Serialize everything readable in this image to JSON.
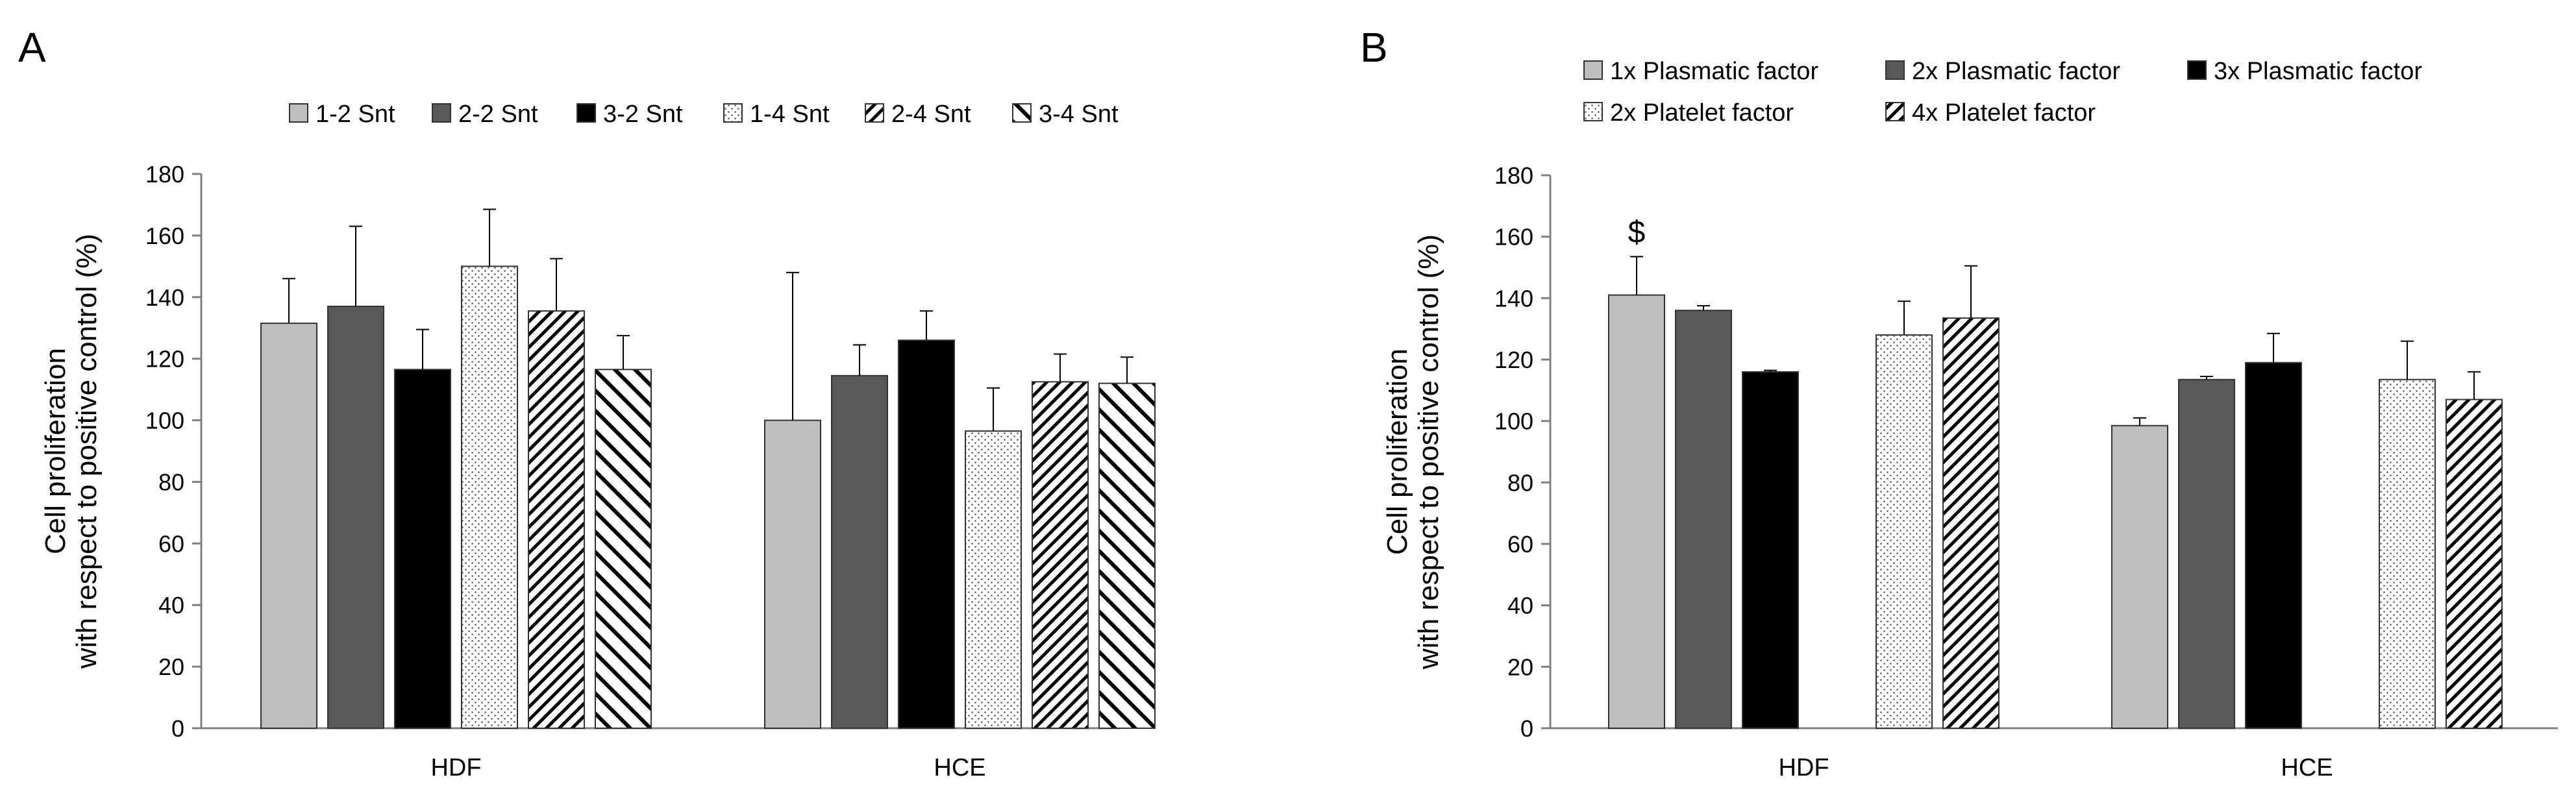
{
  "colors": {
    "grey": "#bfbfbf",
    "dark_grey": "#595959",
    "black": "#000000",
    "outline": "#333333",
    "axis": "#808080"
  },
  "chart_data": [
    {
      "panel": "A",
      "type": "bar",
      "title": "",
      "xlabel": "",
      "ylabel": [
        "Cell proliferation",
        "with respect to positive control (%)"
      ],
      "ylim": [
        0,
        180
      ],
      "yticks": [
        0,
        20,
        40,
        60,
        80,
        100,
        120,
        140,
        160,
        180
      ],
      "categories": [
        "HDF",
        "HCE"
      ],
      "legend_position": "top",
      "series": [
        {
          "name": "1-2 Snt",
          "pattern": "solid-grey",
          "values": [
            131.5,
            100
          ],
          "errors": [
            14.5,
            48
          ]
        },
        {
          "name": "2-2 Snt",
          "pattern": "solid-dark",
          "values": [
            137,
            114.5
          ],
          "errors": [
            26,
            10
          ]
        },
        {
          "name": "3-2 Snt",
          "pattern": "solid-black",
          "values": [
            116.5,
            126
          ],
          "errors": [
            13,
            9.5
          ]
        },
        {
          "name": "1-4 Snt",
          "pattern": "dots",
          "values": [
            150,
            96.5
          ],
          "errors": [
            18.5,
            14
          ]
        },
        {
          "name": "2-4 Snt",
          "pattern": "diag-dense",
          "values": [
            135.5,
            112.5
          ],
          "errors": [
            17,
            9
          ]
        },
        {
          "name": "3-4 Snt",
          "pattern": "diag-wide",
          "values": [
            116.5,
            112
          ],
          "errors": [
            11,
            8.5
          ]
        }
      ]
    },
    {
      "panel": "B",
      "type": "bar",
      "title": "",
      "xlabel": "",
      "ylabel": [
        "Cell proliferation",
        "with respect to positive control (%)"
      ],
      "ylim": [
        0,
        180
      ],
      "yticks": [
        0,
        20,
        40,
        60,
        80,
        100,
        120,
        140,
        160,
        180
      ],
      "categories": [
        "HDF",
        "HCE"
      ],
      "legend_position": "top",
      "annotations": [
        {
          "text": "$",
          "series": "1x Plasmatic factor",
          "category": "HDF"
        }
      ],
      "series": [
        {
          "name": "1x Plasmatic factor",
          "pattern": "solid-grey",
          "values": [
            141,
            98.5
          ],
          "errors": [
            12.5,
            2.5
          ]
        },
        {
          "name": "2x Plasmatic factor",
          "pattern": "solid-dark",
          "values": [
            136,
            113.5
          ],
          "errors": [
            1.5,
            1
          ]
        },
        {
          "name": "3x Plasmatic factor",
          "pattern": "solid-black",
          "values": [
            116,
            119
          ],
          "errors": [
            0.5,
            9.5
          ]
        },
        {
          "name": "2x Platelet factor",
          "pattern": "dots",
          "values": [
            128,
            113.5
          ],
          "errors": [
            11,
            12.5
          ]
        },
        {
          "name": "4x Platelet factor",
          "pattern": "diag-dense",
          "values": [
            133.5,
            107
          ],
          "errors": [
            17,
            9
          ]
        }
      ]
    }
  ]
}
